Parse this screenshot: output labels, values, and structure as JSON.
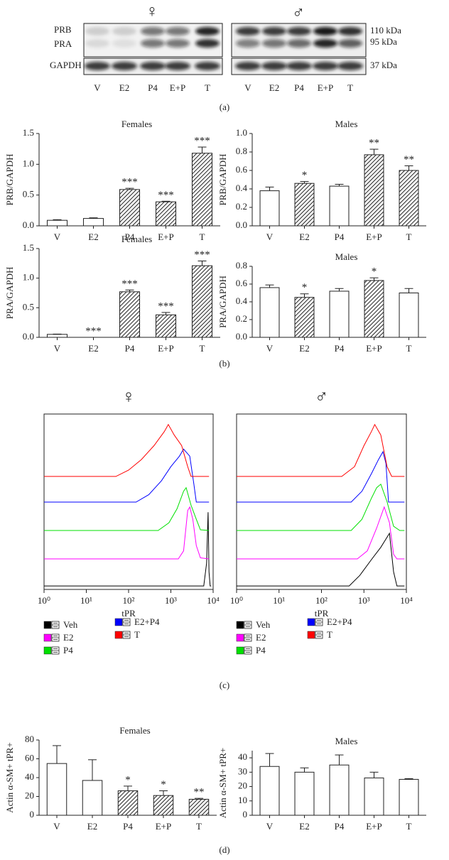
{
  "blot": {
    "female_symbol": "♀",
    "male_symbol": "♂",
    "rows": [
      "PRB",
      "PRA",
      "GAPDH"
    ],
    "kda": [
      "110 kDa",
      "95 kDa",
      "37 kDa"
    ],
    "lanes": [
      "V",
      "E2",
      "P4",
      "E+P",
      "T"
    ]
  },
  "panel_labels": [
    "(a)",
    "(b)",
    "(c)",
    "(d)"
  ],
  "chart_data": [
    {
      "type": "bar",
      "title": "Females",
      "ylabel": "PRB/GAPDH",
      "categories": [
        "V",
        "E2",
        "P4",
        "E+P",
        "T"
      ],
      "values": [
        0.09,
        0.12,
        0.59,
        0.39,
        1.18
      ],
      "errors": [
        0.01,
        0.01,
        0.02,
        0.01,
        0.1
      ],
      "annotations": [
        null,
        null,
        "***",
        "***",
        "***"
      ],
      "ylim": [
        0,
        1.5
      ],
      "yticks": [
        {
          "value": 0,
          "label": "0.0"
        },
        0.5,
        {
          "value": 1,
          "label": "1.0"
        },
        1.5
      ]
    },
    {
      "type": "bar",
      "title": "Males",
      "ylabel": "PRB/GAPDH",
      "categories": [
        "V",
        "E2",
        "P4",
        "E+P",
        "T"
      ],
      "values": [
        0.38,
        0.46,
        0.43,
        0.77,
        0.6
      ],
      "errors": [
        0.04,
        0.02,
        0.02,
        0.06,
        0.05
      ],
      "annotations": [
        null,
        "*",
        null,
        "**",
        "**"
      ],
      "ylim": [
        0,
        1
      ],
      "yticks": [
        {
          "value": 0,
          "label": "0.0"
        },
        0.2,
        0.4,
        0.6,
        0.8,
        {
          "value": 1,
          "label": "1.0"
        }
      ]
    },
    {
      "type": "bar",
      "title": "Females",
      "ylabel": "PRA/GAPDH",
      "categories": [
        "V",
        "E2",
        "P4",
        "E+P",
        "T"
      ],
      "values": [
        0.05,
        0,
        0.77,
        0.38,
        1.21
      ],
      "errors": [
        0.005,
        0,
        0.03,
        0.04,
        0.08
      ],
      "annotations": [
        null,
        "***",
        "***",
        "***",
        "***"
      ],
      "ylim": [
        0,
        1.5
      ],
      "yticks": [
        {
          "value": 0,
          "label": "0.0"
        },
        0.5,
        {
          "value": 1,
          "label": "1.0"
        },
        1.5
      ]
    },
    {
      "type": "bar",
      "title": "Males",
      "ylabel": "PRA/GAPDH",
      "categories": [
        "V",
        "E2",
        "P4",
        "E+P",
        "T"
      ],
      "values": [
        0.56,
        0.45,
        0.52,
        0.64,
        0.5
      ],
      "errors": [
        0.03,
        0.04,
        0.03,
        0.03,
        0.05
      ],
      "annotations": [
        null,
        "*",
        null,
        "*",
        null
      ],
      "ylim": [
        0,
        0.8
      ],
      "yticks": [
        {
          "value": 0,
          "label": "0.0"
        },
        0.2,
        0.4,
        0.6,
        0.8
      ]
    },
    {
      "type": "line",
      "title": "♀",
      "xlabel": "tPR",
      "log_x": true,
      "xlim": [
        1,
        10000
      ],
      "ylim": [
        0,
        100
      ],
      "xticks": [
        {
          "value": 1,
          "label": "10⁰"
        },
        {
          "value": 10,
          "label": "10¹"
        },
        {
          "value": 100,
          "label": "10²"
        },
        {
          "value": 1000,
          "label": "10³"
        },
        {
          "value": 10000,
          "label": "10⁴"
        }
      ],
      "series": [
        {
          "name": "Veh",
          "color": "#000000",
          "x": [
            1,
            6000,
            7000,
            7600,
            8000,
            8500,
            9000
          ],
          "values": [
            2,
            2,
            15,
            44,
            10,
            2,
            2
          ]
        },
        {
          "name": "E2",
          "color": "#ff00ff",
          "x": [
            1,
            1500,
            2000,
            2500,
            2800,
            3300,
            4000,
            5000,
            8000
          ],
          "values": [
            17.4,
            17.4,
            22,
            45,
            47,
            40,
            25,
            18,
            17.4
          ]
        },
        {
          "name": "P4",
          "color": "#00e000",
          "x": [
            1,
            500,
            900,
            1400,
            2000,
            2300,
            3000,
            4000,
            5000,
            8000
          ],
          "values": [
            33.6,
            33.6,
            38,
            46,
            56,
            58,
            48,
            40,
            34,
            33.6
          ]
        },
        {
          "name": "E2+P4",
          "color": "#0000ff",
          "x": [
            1,
            150,
            300,
            600,
            1000,
            1600,
            2000,
            2800,
            3500,
            4000,
            8000
          ],
          "values": [
            49.8,
            49.8,
            54,
            62,
            70,
            76,
            80,
            76,
            60,
            49.8,
            49.8
          ]
        },
        {
          "name": "T",
          "color": "#ff0000",
          "x": [
            1,
            50,
            100,
            200,
            400,
            700,
            870,
            1200,
            1800,
            2500,
            3000,
            8000
          ],
          "values": [
            64.4,
            64.4,
            68,
            74,
            82,
            90,
            94,
            88,
            82,
            70,
            64.4,
            64.4
          ]
        }
      ]
    },
    {
      "type": "line",
      "title": "♂",
      "xlabel": "tPR",
      "log_x": true,
      "xlim": [
        1,
        10000
      ],
      "ylim": [
        0,
        100
      ],
      "xticks": [
        {
          "value": 1,
          "label": "10⁰"
        },
        {
          "value": 10,
          "label": "10¹"
        },
        {
          "value": 100,
          "label": "10²"
        },
        {
          "value": 1000,
          "label": "10³"
        },
        {
          "value": 10000,
          "label": "10⁴"
        }
      ],
      "series": [
        {
          "name": "Veh",
          "color": "#000000",
          "x": [
            1,
            450,
            800,
            1500,
            2500,
            4000,
            5000,
            6000,
            9000
          ],
          "values": [
            2,
            2,
            8,
            17,
            24,
            32,
            10,
            2,
            2
          ]
        },
        {
          "name": "E2",
          "color": "#ff00ff",
          "x": [
            1,
            700,
            1200,
            2000,
            3000,
            4000,
            5000,
            6000,
            9000
          ],
          "values": [
            17.4,
            17.4,
            22,
            35,
            47,
            38,
            20,
            17.4,
            17.4
          ]
        },
        {
          "name": "P4",
          "color": "#00e000",
          "x": [
            1,
            500,
            900,
            1500,
            2000,
            2500,
            3500,
            5000,
            7000,
            9000
          ],
          "values": [
            33.6,
            33.6,
            40,
            52,
            58,
            60,
            50,
            36,
            33.6,
            33.6
          ]
        },
        {
          "name": "E2+P4",
          "color": "#0000ff",
          "x": [
            1,
            500,
            900,
            1500,
            2200,
            2800,
            3300,
            3800,
            9000
          ],
          "values": [
            49.8,
            49.8,
            56,
            66,
            74,
            78.5,
            72,
            49.8,
            49.8
          ]
        },
        {
          "name": "T",
          "color": "#ff0000",
          "x": [
            1,
            300,
            600,
            1000,
            1500,
            1800,
            2500,
            3500,
            4500,
            9000
          ],
          "values": [
            64.4,
            64.4,
            70,
            82,
            90,
            94,
            88,
            70,
            64.4,
            64.4
          ]
        }
      ]
    },
    {
      "type": "bar",
      "title": "Females",
      "ylabel": "Actin α-SM+ tPR+",
      "categories": [
        "V",
        "E2",
        "P4",
        "E+P",
        "T"
      ],
      "values": [
        55,
        37,
        26,
        21,
        17
      ],
      "errors": [
        19,
        22,
        5,
        5,
        1
      ],
      "annotations": [
        null,
        null,
        "*",
        "*",
        "**"
      ],
      "ylim": [
        0,
        80
      ],
      "yticks": [
        0,
        20,
        40,
        60,
        80
      ]
    },
    {
      "type": "bar",
      "title": "Males",
      "ylabel": "Actin α-SM+ tPR+",
      "categories": [
        "V",
        "E2",
        "P4",
        "E+P",
        "T"
      ],
      "values": [
        34,
        30,
        35,
        26,
        25
      ],
      "errors": [
        9,
        3,
        7,
        4,
        0.5
      ],
      "annotations": [
        null,
        null,
        null,
        null,
        null
      ],
      "ylim": [
        0,
        45
      ],
      "yticks": [
        0,
        10,
        20,
        30,
        40
      ]
    }
  ]
}
